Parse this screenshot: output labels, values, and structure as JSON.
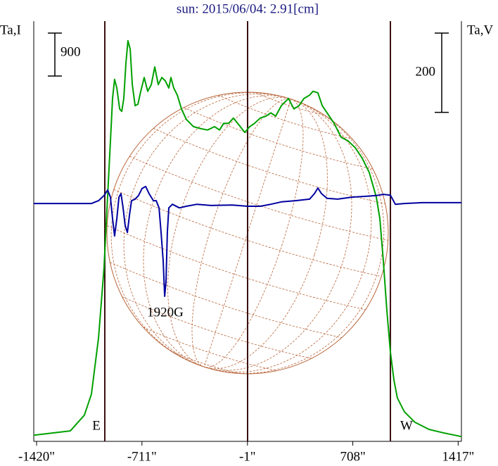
{
  "chart_data": {
    "type": "line",
    "title": "sun: 2015/06/04: 2.91[cm]",
    "ylabel": "Ta,I",
    "y2label": "Ta,V",
    "i_scale": 900,
    "v_scale": 200,
    "xlim": [
      -1439,
      1439
    ],
    "xticks": [
      {
        "value": -1420,
        "label": "-1420\""
      },
      {
        "value": -711,
        "label": "-711\""
      },
      {
        "value": -1,
        "label": "-1\""
      },
      {
        "value": 708,
        "label": "708\""
      },
      {
        "value": 1417,
        "label": "1417\""
      }
    ],
    "ylim": [
      0,
      8800
    ],
    "y2lim": [
      -600,
      460
    ],
    "vlines": [
      -961,
      0,
      961
    ],
    "annotations": [
      "1920G",
      "E",
      "W"
    ],
    "series": [
      {
        "color": "#00a000",
        "x": [
          -1439,
          -1193,
          -1098,
          -1051,
          -1003,
          -966,
          -947,
          -923,
          -909,
          -895,
          -880,
          -861,
          -847,
          -833,
          -819,
          -805,
          -790,
          -776,
          -757,
          -738,
          -719,
          -696,
          -672,
          -648,
          -625,
          -601,
          -577,
          -554,
          -530,
          -516,
          -497,
          -473,
          -445,
          -412,
          -364,
          -317,
          -270,
          -222,
          -189,
          -161,
          -128,
          -95,
          -57,
          -19,
          14,
          47,
          85,
          123,
          156,
          189,
          227,
          275,
          312,
          346,
          379,
          417,
          440,
          473,
          502,
          535,
          582,
          629,
          677,
          724,
          771,
          819,
          866,
          890,
          913,
          937,
          961,
          985,
          1008,
          1055,
          1126,
          1221,
          1316,
          1439
        ],
        "values": [
          130,
          220,
          550,
          990,
          2170,
          3640,
          4820,
          6290,
          7180,
          7580,
          7400,
          6960,
          6910,
          7180,
          7920,
          8390,
          8210,
          7470,
          7030,
          7060,
          7330,
          7620,
          7330,
          7470,
          7840,
          7470,
          7620,
          7550,
          7400,
          7620,
          7400,
          7250,
          6960,
          6740,
          6590,
          6550,
          6520,
          6590,
          6520,
          6660,
          6660,
          6770,
          6620,
          6470,
          6590,
          6660,
          6770,
          6810,
          6880,
          6810,
          7030,
          7180,
          6960,
          7030,
          7180,
          7250,
          7330,
          7300,
          7030,
          6880,
          6660,
          6370,
          6290,
          6150,
          5930,
          5630,
          5120,
          4670,
          3790,
          2760,
          1870,
          1280,
          910,
          620,
          400,
          250,
          180,
          100
        ]
      },
      {
        "color": "#0000a0",
        "axis": "y2",
        "x": [
          -1439,
          -1193,
          -1051,
          -1003,
          -966,
          -942,
          -923,
          -909,
          -895,
          -880,
          -866,
          -852,
          -838,
          -824,
          -809,
          -795,
          -781,
          -757,
          -734,
          -710,
          -686,
          -663,
          -634,
          -615,
          -596,
          -582,
          -568,
          -558,
          -549,
          -540,
          -530,
          -506,
          -459,
          -412,
          -341,
          -246,
          -104,
          0,
          85,
          156,
          227,
          322,
          417,
          450,
          473,
          497,
          535,
          606,
          700,
          795,
          866,
          913,
          961,
          994,
          1055,
          1174,
          1439
        ],
        "values": [
          0,
          0,
          0,
          7,
          20,
          34,
          16,
          -38,
          -82,
          -38,
          16,
          25,
          -11,
          -55,
          -73,
          -29,
          7,
          11,
          20,
          38,
          43,
          25,
          7,
          7,
          -11,
          -73,
          -145,
          -234,
          -198,
          -73,
          -11,
          -2,
          -11,
          -7,
          -2,
          -5,
          -4,
          -7,
          -7,
          -2,
          4,
          7,
          11,
          25,
          39,
          25,
          13,
          11,
          16,
          18,
          20,
          23,
          21,
          -2,
          0,
          2,
          2
        ]
      }
    ]
  }
}
